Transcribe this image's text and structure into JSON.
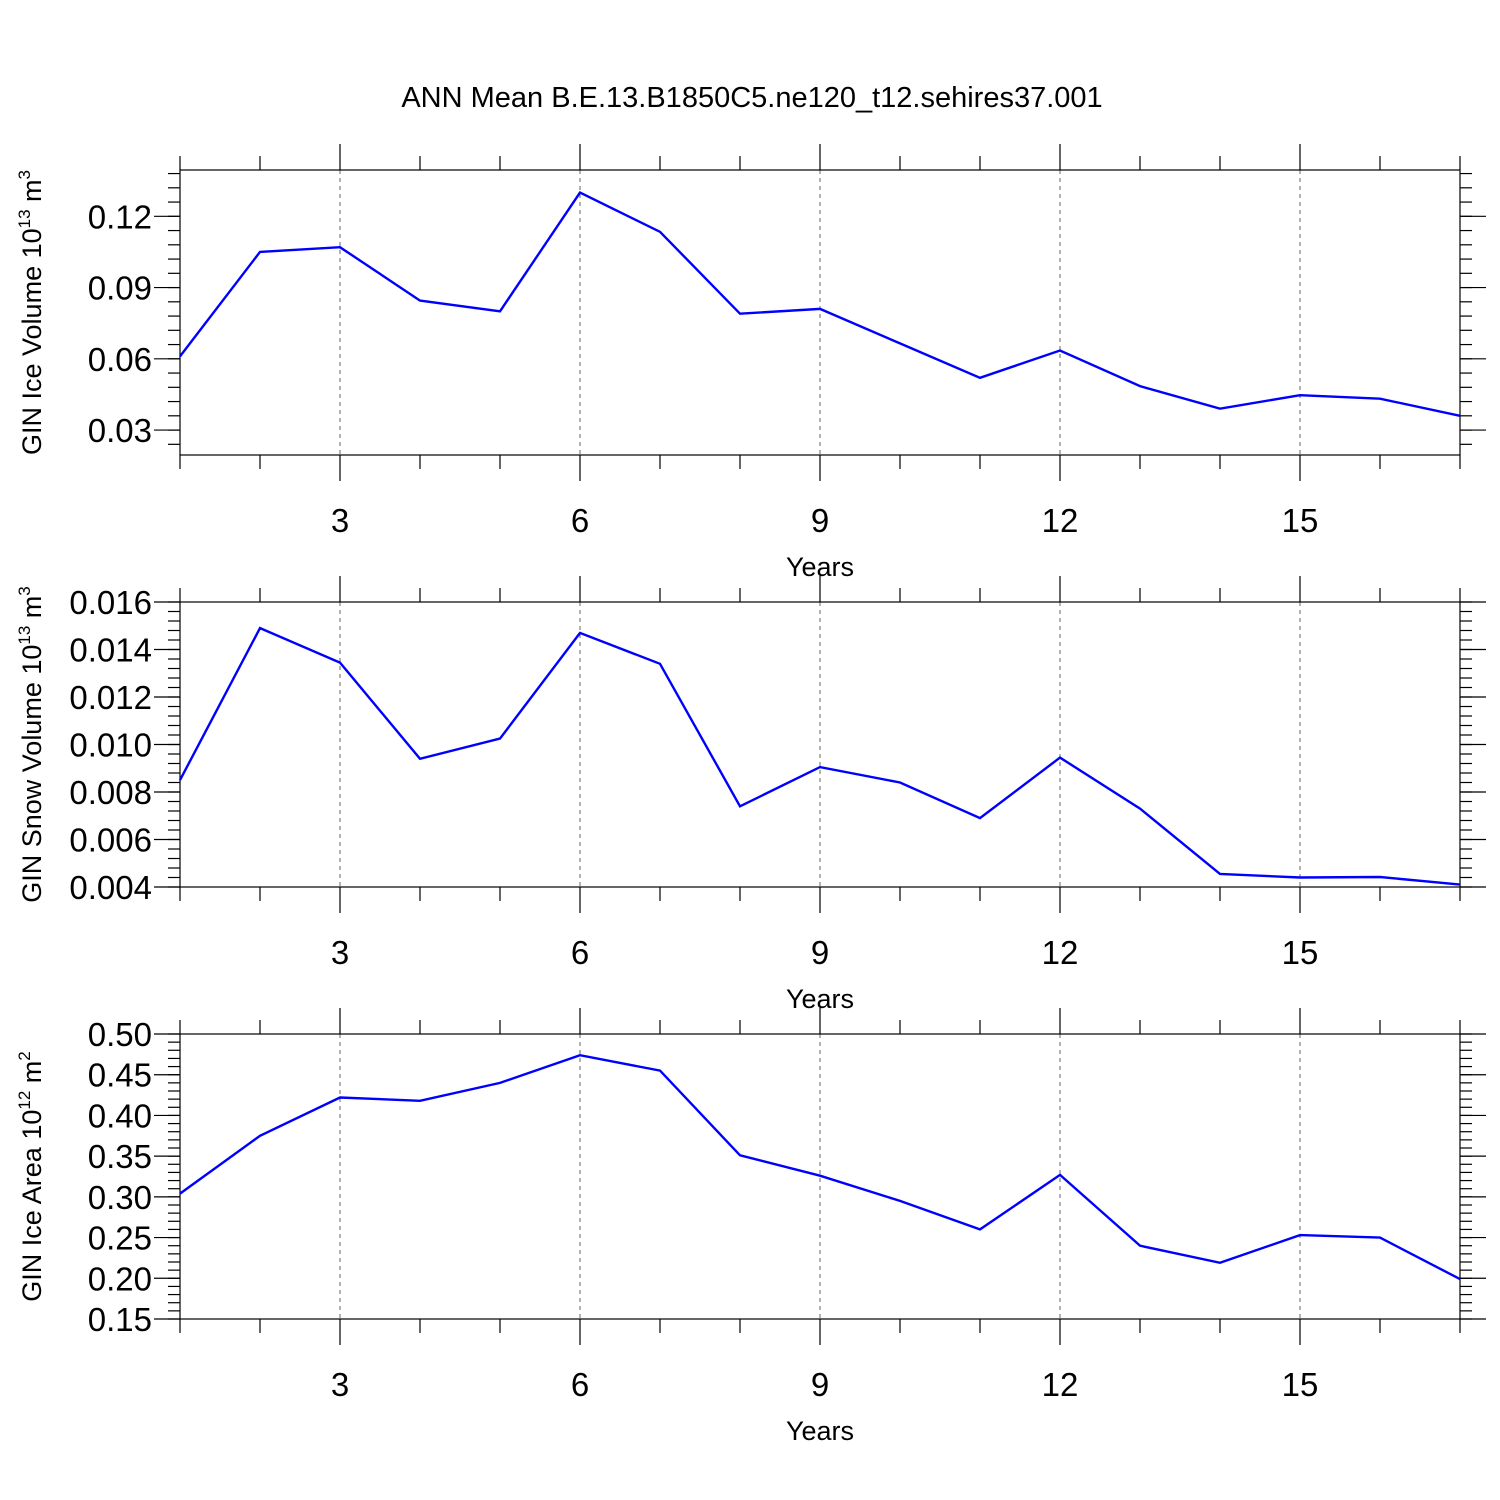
{
  "title": "ANN Mean B.E.13.B1850C5.ne120_t12.sehires37.001",
  "line_color": "#0000ff",
  "chart_data": [
    {
      "type": "line",
      "xlabel": "Years",
      "ylabel": {
        "main": "GIN Ice Volume 10",
        "sup1": "13",
        "mid": " m",
        "sup2": "3"
      },
      "xlim": [
        1,
        17
      ],
      "ylim": [
        0.0195,
        0.1395
      ],
      "x_ticks": [
        3,
        6,
        9,
        12,
        15
      ],
      "x_tick_labels": [
        "3",
        "6",
        "9",
        "12",
        "15"
      ],
      "y_ticks": [
        0.03,
        0.06,
        0.09,
        0.12
      ],
      "y_tick_labels": [
        "0.03",
        "0.06",
        "0.09",
        "0.12"
      ],
      "y_minor_step": 0.006,
      "grid": "dashed vertical at major x ticks",
      "x": [
        1,
        2,
        3,
        4,
        5,
        6,
        7,
        8,
        9,
        10,
        11,
        12,
        13,
        14,
        15,
        16,
        17
      ],
      "series": [
        {
          "values": [
            0.061,
            0.105,
            0.107,
            0.0845,
            0.08,
            0.13,
            0.1135,
            0.079,
            0.081,
            0.0665,
            0.052,
            0.0635,
            0.0485,
            0.039,
            0.0447,
            0.0432,
            0.036
          ]
        }
      ]
    },
    {
      "type": "line",
      "xlabel": "Years",
      "ylabel": {
        "main": "GIN Snow Volume 10",
        "sup1": "13",
        "mid": " m",
        "sup2": "3"
      },
      "xlim": [
        1,
        17
      ],
      "ylim": [
        0.004,
        0.016
      ],
      "x_ticks": [
        3,
        6,
        9,
        12,
        15
      ],
      "x_tick_labels": [
        "3",
        "6",
        "9",
        "12",
        "15"
      ],
      "y_ticks": [
        0.004,
        0.006,
        0.008,
        0.01,
        0.012,
        0.014,
        0.016
      ],
      "y_tick_labels": [
        "0.004",
        "0.006",
        "0.008",
        "0.010",
        "0.012",
        "0.014",
        "0.016"
      ],
      "y_minor_step": 0.0004,
      "grid": "dashed vertical at major x ticks",
      "x": [
        1,
        2,
        3,
        4,
        5,
        6,
        7,
        8,
        9,
        10,
        11,
        12,
        13,
        14,
        15,
        16,
        17
      ],
      "series": [
        {
          "values": [
            0.0085,
            0.0149,
            0.01345,
            0.0094,
            0.01025,
            0.0147,
            0.0134,
            0.0074,
            0.00905,
            0.0084,
            0.0069,
            0.00945,
            0.0073,
            0.00455,
            0.0044,
            0.00442,
            0.0041
          ]
        }
      ]
    },
    {
      "type": "line",
      "xlabel": "Years",
      "ylabel": {
        "main": "GIN Ice Area 10",
        "sup1": "12",
        "mid": " m",
        "sup2": "2"
      },
      "xlim": [
        1,
        17
      ],
      "ylim": [
        0.15,
        0.5
      ],
      "x_ticks": [
        3,
        6,
        9,
        12,
        15
      ],
      "x_tick_labels": [
        "3",
        "6",
        "9",
        "12",
        "15"
      ],
      "y_ticks": [
        0.15,
        0.2,
        0.25,
        0.3,
        0.35,
        0.4,
        0.45,
        0.5
      ],
      "y_tick_labels": [
        "0.15",
        "0.20",
        "0.25",
        "0.30",
        "0.35",
        "0.40",
        "0.45",
        "0.50"
      ],
      "y_minor_step": 0.01,
      "grid": "dashed vertical at major x ticks",
      "x": [
        1,
        2,
        3,
        4,
        5,
        6,
        7,
        8,
        9,
        10,
        11,
        12,
        13,
        14,
        15,
        16,
        17
      ],
      "series": [
        {
          "values": [
            0.304,
            0.375,
            0.422,
            0.418,
            0.44,
            0.474,
            0.455,
            0.351,
            0.326,
            0.295,
            0.26,
            0.327,
            0.24,
            0.219,
            0.253,
            0.25,
            0.199
          ]
        }
      ]
    }
  ]
}
